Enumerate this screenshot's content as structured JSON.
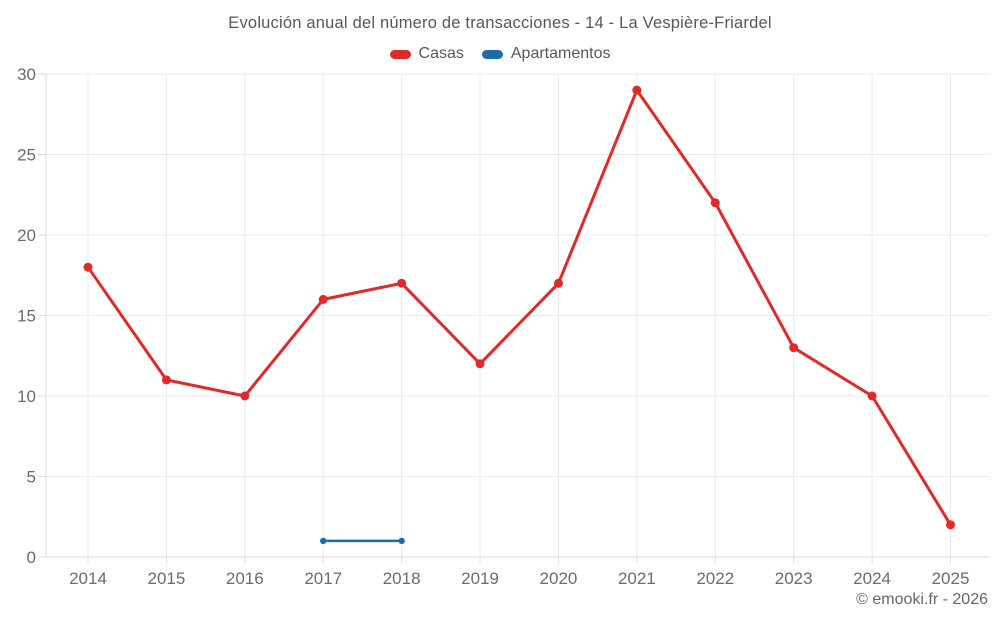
{
  "chart_data": {
    "type": "line",
    "title": "Evolución anual del número de transacciones - 14 - La Vespière-Friardel",
    "categories": [
      "2014",
      "2015",
      "2016",
      "2017",
      "2018",
      "2019",
      "2020",
      "2021",
      "2022",
      "2023",
      "2024",
      "2025"
    ],
    "series": [
      {
        "name": "Casas",
        "color": "#e02a2a",
        "values": [
          18,
          11,
          10,
          16,
          17,
          12,
          17,
          29,
          22,
          13,
          10,
          2
        ],
        "line_width": 3,
        "marker_radius": 4.5
      },
      {
        "name": "Apartamentos",
        "color": "#1c6da6",
        "values": [
          null,
          null,
          null,
          1,
          1,
          null,
          null,
          null,
          null,
          null,
          null,
          null
        ],
        "line_width": 2.5,
        "marker_radius": 3.2
      }
    ],
    "xlabel": "",
    "ylabel": "",
    "ylim": [
      0,
      30
    ],
    "yticks": [
      0,
      5,
      10,
      15,
      20,
      25,
      30
    ],
    "grid": true,
    "legend_position": "top"
  },
  "footer": {
    "copyright": "© emooki.fr - 2026"
  },
  "colors": {
    "grid": "#eaeaea",
    "axis": "#d9d9d9",
    "tick_text": "#696b70"
  }
}
